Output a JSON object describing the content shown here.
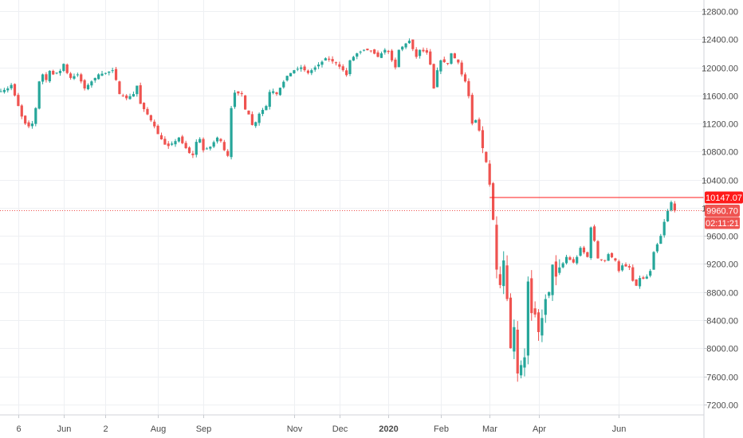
{
  "chart_data": {
    "type": "candlestick",
    "title": "",
    "xlabel": "",
    "ylabel": "",
    "y_range": [
      7050,
      12960
    ],
    "y_ticks": [
      7200,
      7600,
      8000,
      8400,
      8800,
      9200,
      9600,
      10000,
      10400,
      10800,
      11200,
      11600,
      12000,
      12400,
      12800
    ],
    "y_tick_labels": [
      "7200.00",
      "7600.00",
      "8000.00",
      "8400.00",
      "8800.00",
      "9200.00",
      "9600.00",
      "10000.00",
      "10400.00",
      "10800.00",
      "11200.00",
      "11600.00",
      "12000.00",
      "12400.00",
      "12800.00"
    ],
    "x_labels": [
      {
        "label": "6",
        "index": 5,
        "bold": false
      },
      {
        "label": "Jun",
        "index": 18,
        "bold": false
      },
      {
        "label": "2",
        "index": 30,
        "bold": false
      },
      {
        "label": "Aug",
        "index": 45,
        "bold": false
      },
      {
        "label": "Sep",
        "index": 58,
        "bold": false
      },
      {
        "label": "Nov",
        "index": 84,
        "bold": false
      },
      {
        "label": "Dec",
        "index": 97,
        "bold": false
      },
      {
        "label": "2020",
        "index": 111,
        "bold": true
      },
      {
        "label": "Feb",
        "index": 126,
        "bold": false
      },
      {
        "label": "Mar",
        "index": 140,
        "bold": false
      },
      {
        "label": "Apr",
        "index": 154,
        "bold": false
      },
      {
        "label": "Jun",
        "index": 177,
        "bold": false
      }
    ],
    "grid": true,
    "colors": {
      "up": "#26a69a",
      "down": "#ef5350",
      "grid": "#eef0f3",
      "axis_text": "#4a4a4a",
      "badge": "#ef5350",
      "high_badge": "#ff1a1a"
    },
    "close_path": [
      [
        0,
        11660
      ],
      [
        2,
        11700
      ],
      [
        3,
        11750
      ],
      [
        4,
        11600
      ],
      [
        5,
        11450
      ],
      [
        6,
        11300
      ],
      [
        7,
        11200
      ],
      [
        8,
        11160
      ],
      [
        9,
        11200
      ],
      [
        10,
        11420
      ],
      [
        11,
        11800
      ],
      [
        12,
        11900
      ],
      [
        13,
        11820
      ],
      [
        14,
        11950
      ],
      [
        15,
        11900
      ],
      [
        17,
        11950
      ],
      [
        18,
        12050
      ],
      [
        19,
        11920
      ],
      [
        20,
        11850
      ],
      [
        22,
        11900
      ],
      [
        24,
        11700
      ],
      [
        26,
        11800
      ],
      [
        28,
        11900
      ],
      [
        30,
        11920
      ],
      [
        32,
        11960
      ],
      [
        33,
        11820
      ],
      [
        34,
        11620
      ],
      [
        36,
        11560
      ],
      [
        38,
        11620
      ],
      [
        39,
        11740
      ],
      [
        40,
        11480
      ],
      [
        42,
        11330
      ],
      [
        44,
        11160
      ],
      [
        45,
        11050
      ],
      [
        47,
        10900
      ],
      [
        48,
        10880
      ],
      [
        50,
        10950
      ],
      [
        51,
        11000
      ],
      [
        52,
        10920
      ],
      [
        54,
        10780
      ],
      [
        55,
        10750
      ],
      [
        56,
        10940
      ],
      [
        57,
        10980
      ],
      [
        58,
        10820
      ],
      [
        60,
        10870
      ],
      [
        62,
        11000
      ],
      [
        63,
        10950
      ],
      [
        64,
        10820
      ],
      [
        65,
        10740
      ],
      [
        66,
        11420
      ],
      [
        67,
        11640
      ],
      [
        69,
        11620
      ],
      [
        70,
        11400
      ],
      [
        71,
        11330
      ],
      [
        72,
        11180
      ],
      [
        73,
        11220
      ],
      [
        74,
        11340
      ],
      [
        76,
        11450
      ],
      [
        77,
        11650
      ],
      [
        78,
        11660
      ],
      [
        79,
        11620
      ],
      [
        80,
        11710
      ],
      [
        82,
        11880
      ],
      [
        84,
        11960
      ],
      [
        86,
        12000
      ],
      [
        88,
        11920
      ],
      [
        90,
        12000
      ],
      [
        92,
        12080
      ],
      [
        93,
        12130
      ],
      [
        94,
        12110
      ],
      [
        96,
        12060
      ],
      [
        98,
        11960
      ],
      [
        99,
        11890
      ],
      [
        100,
        12100
      ],
      [
        102,
        12200
      ],
      [
        104,
        12250
      ],
      [
        106,
        12240
      ],
      [
        108,
        12150
      ],
      [
        110,
        12250
      ],
      [
        111,
        12220
      ],
      [
        112,
        12100
      ],
      [
        113,
        12000
      ],
      [
        114,
        12250
      ],
      [
        116,
        12340
      ],
      [
        117,
        12380
      ],
      [
        118,
        12260
      ],
      [
        119,
        12150
      ],
      [
        120,
        12250
      ],
      [
        122,
        12210
      ],
      [
        123,
        12040
      ],
      [
        124,
        11700
      ],
      [
        125,
        11960
      ],
      [
        126,
        12100
      ],
      [
        128,
        12050
      ],
      [
        129,
        12200
      ],
      [
        130,
        12130
      ],
      [
        131,
        12070
      ],
      [
        132,
        11900
      ],
      [
        133,
        11800
      ],
      [
        134,
        11590
      ],
      [
        135,
        11200
      ],
      [
        136,
        11250
      ],
      [
        137,
        11100
      ],
      [
        138,
        10850
      ],
      [
        139,
        10650
      ],
      [
        140,
        10330
      ],
      [
        141,
        9830
      ],
      [
        142,
        9120
      ],
      [
        143,
        8900
      ],
      [
        144,
        9250
      ],
      [
        145,
        8700
      ],
      [
        146,
        8000
      ],
      [
        147,
        8300
      ],
      [
        148,
        7640
      ],
      [
        149,
        7760
      ],
      [
        150,
        7870
      ],
      [
        151,
        8950
      ],
      [
        152,
        8500
      ],
      [
        153,
        8480
      ],
      [
        154,
        8230
      ],
      [
        155,
        8430
      ],
      [
        156,
        8700
      ],
      [
        157,
        8800
      ],
      [
        158,
        9190
      ],
      [
        159,
        9020
      ],
      [
        160,
        9150
      ],
      [
        161,
        9210
      ],
      [
        162,
        9300
      ],
      [
        163,
        9260
      ],
      [
        164,
        9220
      ],
      [
        165,
        9300
      ],
      [
        166,
        9430
      ],
      [
        168,
        9300
      ],
      [
        169,
        9720
      ],
      [
        170,
        9530
      ],
      [
        171,
        9280
      ],
      [
        172,
        9260
      ],
      [
        173,
        9250
      ],
      [
        174,
        9340
      ],
      [
        176,
        9250
      ],
      [
        177,
        9100
      ],
      [
        178,
        9180
      ],
      [
        180,
        9150
      ],
      [
        181,
        8960
      ],
      [
        182,
        8890
      ],
      [
        183,
        9000
      ],
      [
        184,
        8990
      ],
      [
        185,
        9020
      ],
      [
        186,
        9100
      ],
      [
        187,
        9370
      ],
      [
        188,
        9480
      ],
      [
        189,
        9600
      ],
      [
        190,
        9800
      ],
      [
        191,
        9960
      ],
      [
        192,
        10080
      ],
      [
        193,
        9960.7
      ]
    ],
    "last_price": {
      "value": 9960.7,
      "label": "9960.70",
      "countdown": "02:11:21"
    },
    "high_line": {
      "value": 10147.07,
      "label": "10147.07"
    }
  }
}
